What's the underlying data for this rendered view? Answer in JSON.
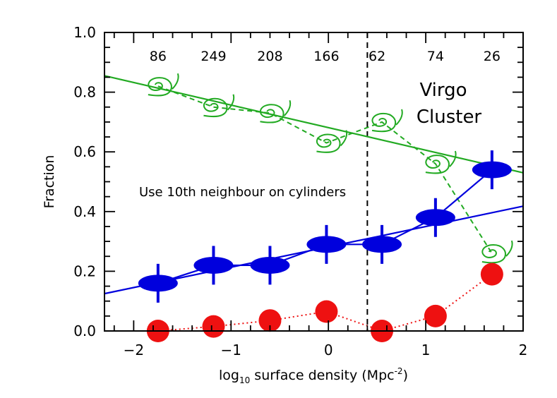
{
  "chart_data": {
    "type": "scatter",
    "xlabel": "log",
    "xlabel_sub": "10",
    "xlabel_rest": " surface density (Mpc",
    "xlabel_sup": "-2",
    "xlabel_end": ")",
    "ylabel": "Fraction",
    "xlim": [
      -2.3,
      2.0
    ],
    "ylim": [
      0.0,
      1.0
    ],
    "x_ticks": [
      -2,
      -1,
      0,
      1,
      2
    ],
    "x_tick_labels": [
      "−2",
      "−1",
      "0",
      "1",
      "2"
    ],
    "y_ticks": [
      0.0,
      0.2,
      0.4,
      0.6,
      0.8,
      1.0
    ],
    "y_tick_labels": [
      "0.0",
      "0.2",
      "0.4",
      "0.6",
      "0.8",
      "1.0"
    ],
    "counts": [
      {
        "x": -1.75,
        "label": "86"
      },
      {
        "x": -1.18,
        "label": "249"
      },
      {
        "x": -0.6,
        "label": "208"
      },
      {
        "x": -0.02,
        "label": "166"
      },
      {
        "x": 0.5,
        "label": "62"
      },
      {
        "x": 1.1,
        "label": "74"
      },
      {
        "x": 1.68,
        "label": "26"
      }
    ],
    "vertical_line_x": 0.4,
    "annotations": {
      "region": [
        "Virgo",
        "Cluster"
      ],
      "method": "Use 10th neighbour on cylinders"
    },
    "series": [
      {
        "key": "spiral",
        "color": "#22aa22",
        "x": [
          -1.75,
          -1.18,
          -0.6,
          -0.02,
          0.55,
          1.1,
          1.68
        ],
        "y": [
          0.82,
          0.75,
          0.73,
          0.63,
          0.7,
          0.56,
          0.26
        ],
        "fit": [
          [
            -2.3,
            0.855
          ],
          [
            2.0,
            0.53
          ]
        ]
      },
      {
        "key": "blue",
        "color": "#0000dd",
        "x": [
          -1.75,
          -1.18,
          -0.6,
          -0.02,
          0.55,
          1.1,
          1.68
        ],
        "y": [
          0.16,
          0.22,
          0.22,
          0.29,
          0.29,
          0.38,
          0.54
        ],
        "yerr": [
          0.065,
          0.065,
          0.065,
          0.065,
          0.065,
          0.065,
          0.065
        ],
        "fit": [
          [
            -2.3,
            0.125
          ],
          [
            2.0,
            0.418
          ]
        ]
      },
      {
        "key": "red",
        "color": "#ee1111",
        "x": [
          -1.75,
          -1.18,
          -0.6,
          -0.02,
          0.55,
          1.1,
          1.68
        ],
        "y": [
          0.0,
          0.015,
          0.035,
          0.065,
          0.0,
          0.05,
          0.19
        ]
      }
    ]
  }
}
